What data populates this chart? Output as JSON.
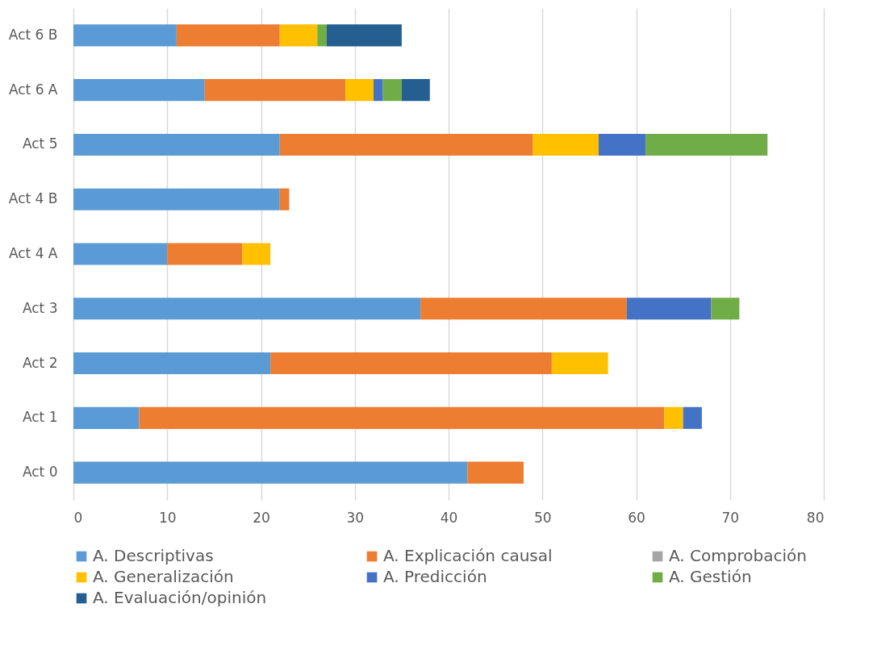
{
  "chart_data": {
    "type": "bar",
    "orientation": "horizontal",
    "stacked": true,
    "categories": [
      "Act 6 B",
      "Act 6 A",
      "Act 5",
      "Act 4 B",
      "Act 4 A",
      "Act 3",
      "Act 2",
      "Act 1",
      "Act 0"
    ],
    "series": [
      {
        "name": "A. Descriptivas",
        "color": "#5b9bd5",
        "values": [
          11,
          14,
          22,
          22,
          10,
          37,
          21,
          7,
          42
        ]
      },
      {
        "name": "A. Explicación causal",
        "color": "#ed7d31",
        "values": [
          11,
          15,
          27,
          1,
          8,
          22,
          30,
          56,
          6
        ]
      },
      {
        "name": "A. Comprobación",
        "color": "#a5a5a5",
        "values": [
          null,
          null,
          null,
          null,
          null,
          null,
          null,
          null,
          null
        ]
      },
      {
        "name": "A. Generalización",
        "color": "#ffc000",
        "values": [
          4,
          3,
          7,
          null,
          3,
          null,
          6,
          2,
          null
        ]
      },
      {
        "name": "A. Predicción",
        "color": "#4472c4",
        "values": [
          null,
          1,
          5,
          null,
          null,
          9,
          null,
          2,
          null
        ]
      },
      {
        "name": "A. Gestión",
        "color": "#70ad47",
        "values": [
          1,
          2,
          13,
          null,
          null,
          3,
          null,
          null,
          null
        ]
      },
      {
        "name": "A. Evaluación/opinión",
        "color": "#255e91",
        "values": [
          8,
          3,
          null,
          null,
          null,
          null,
          null,
          null,
          null
        ]
      }
    ],
    "xlim": [
      0,
      80
    ],
    "xticks": [
      0,
      10,
      20,
      30,
      40,
      50,
      60,
      70,
      80
    ],
    "grid": "x",
    "legend": "bottom"
  }
}
